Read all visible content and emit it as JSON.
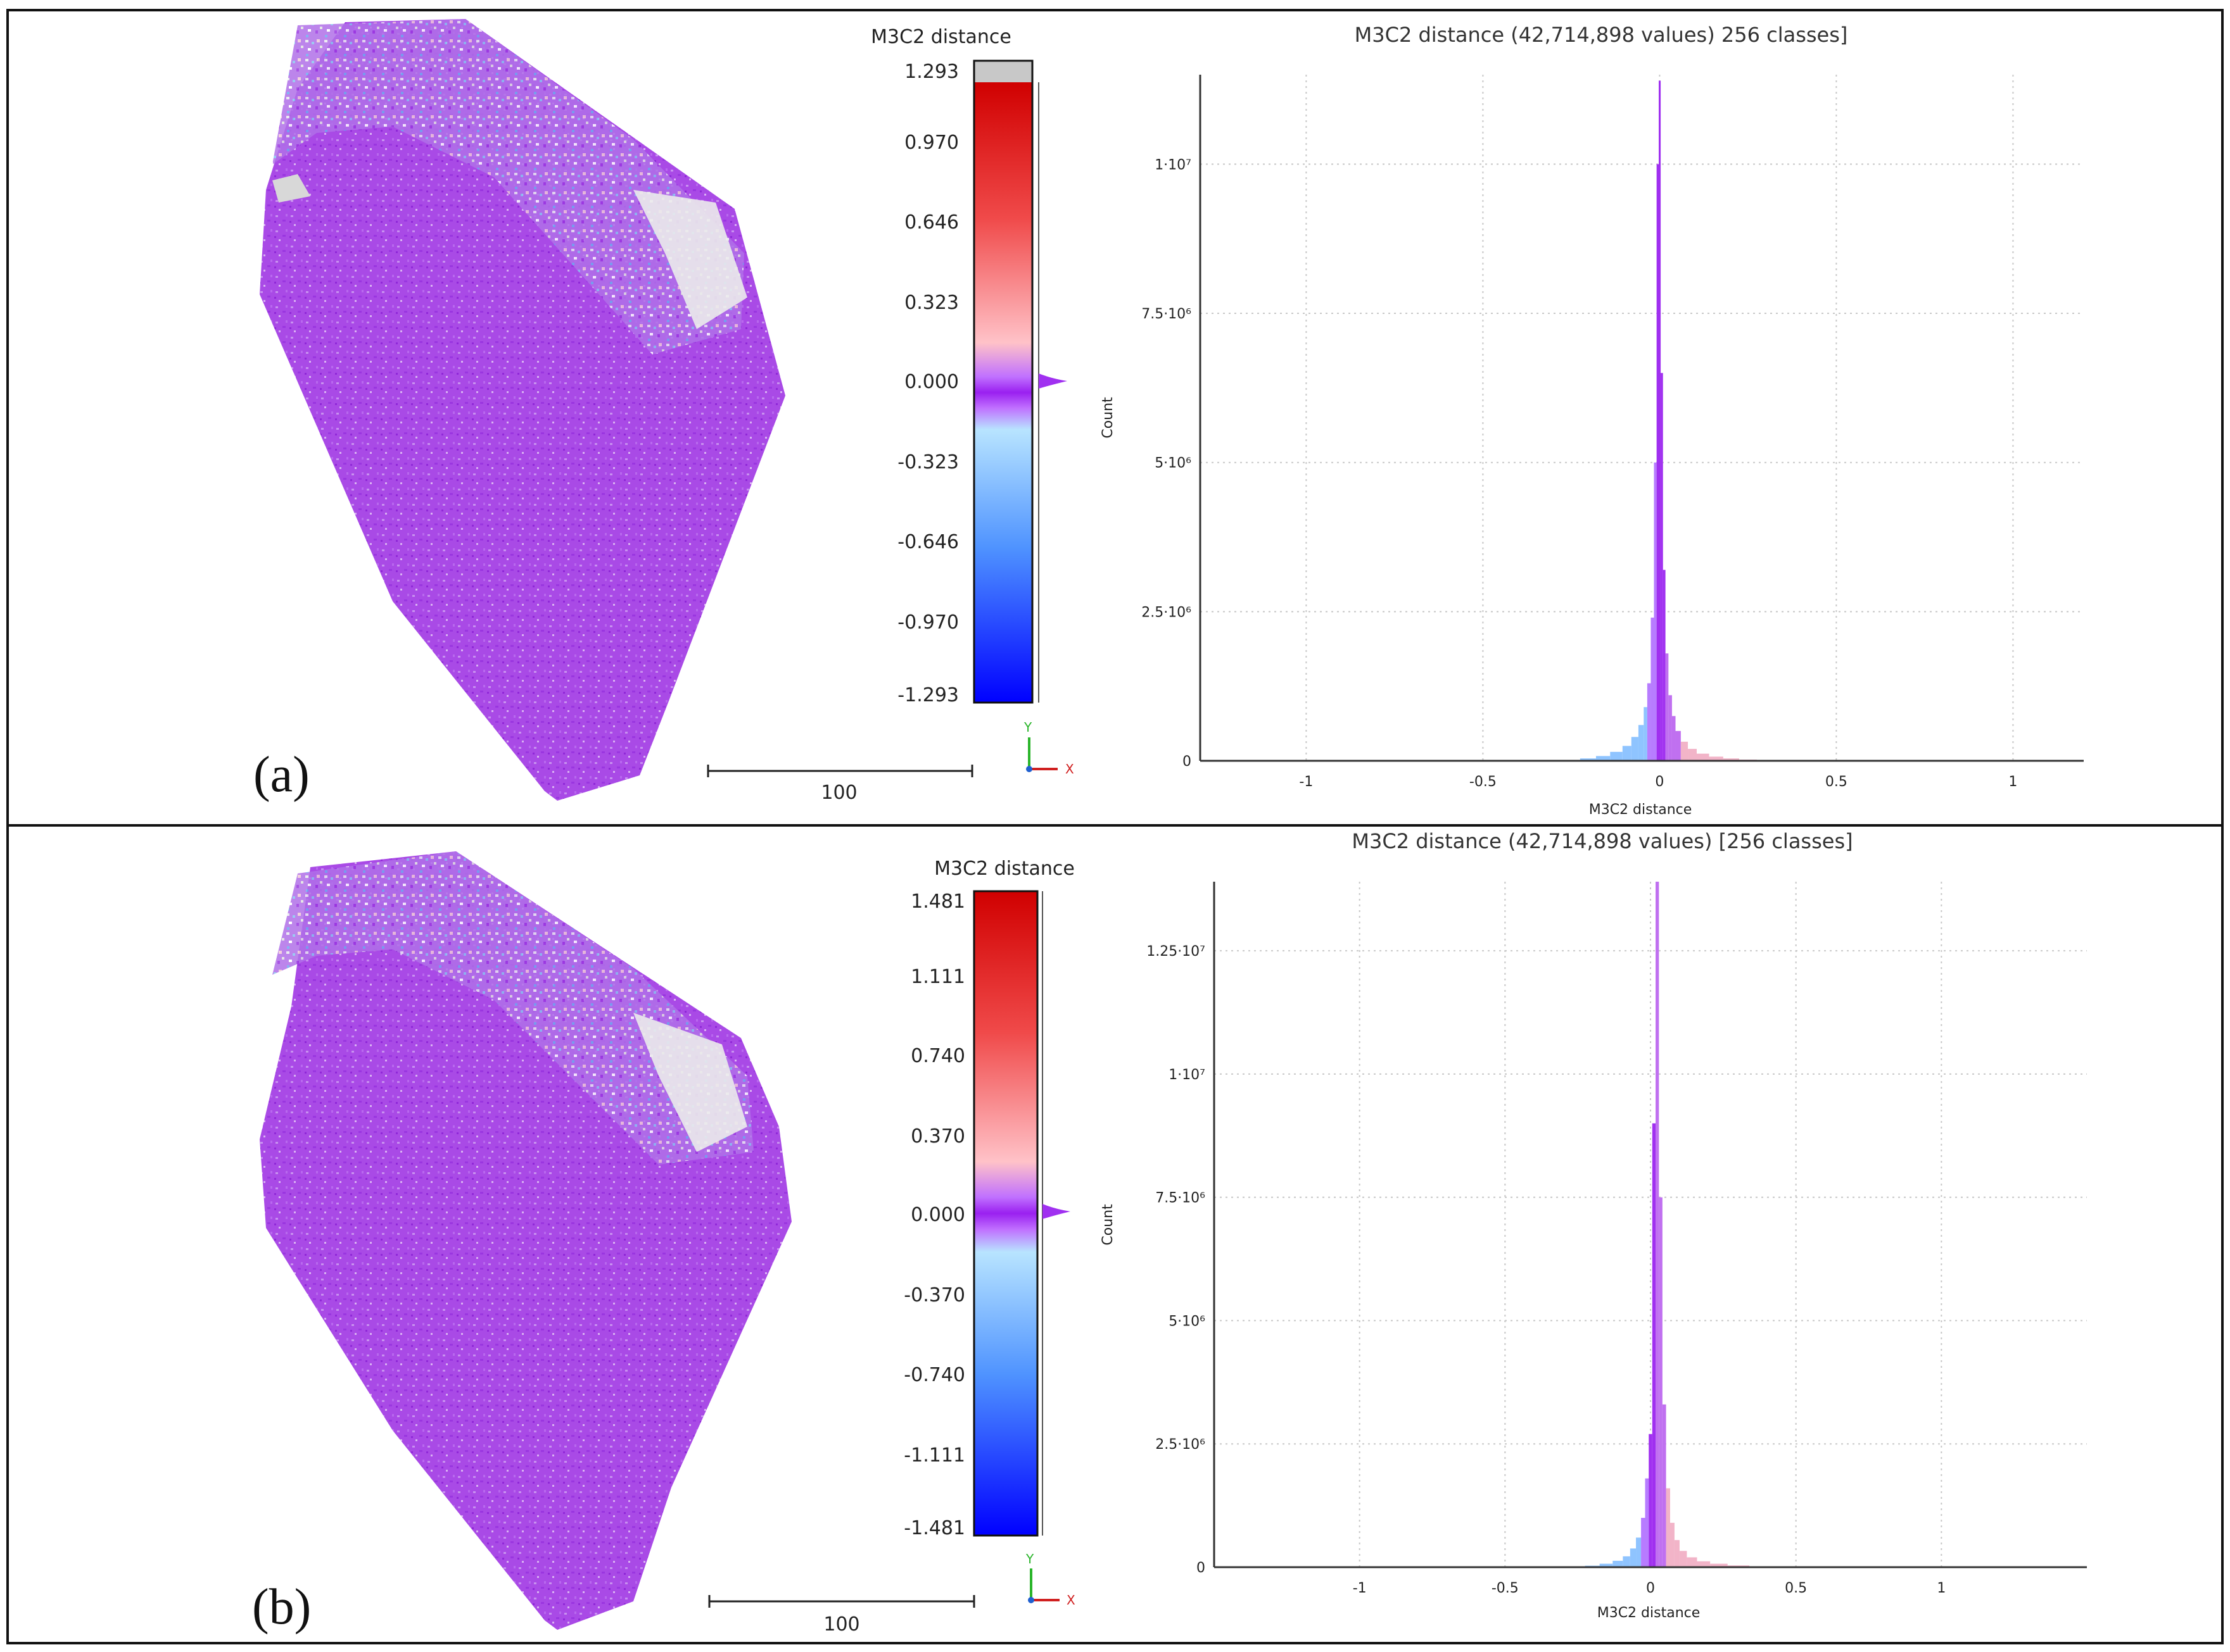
{
  "panels": [
    {
      "letter": "(a)",
      "colorbar": {
        "title": "M3C2 distance",
        "labels": [
          "1.293",
          "0.970",
          "0.646",
          "0.323",
          "0.000",
          "-0.323",
          "-0.646",
          "-0.970",
          "-1.293"
        ],
        "top_gray": true
      },
      "scale_label": "100",
      "axes": {
        "y": "Y",
        "x": "X"
      }
    },
    {
      "letter": "(b)",
      "colorbar": {
        "title": "M3C2 distance",
        "labels": [
          "1.481",
          "1.111",
          "0.740",
          "0.370",
          "0.000",
          "-0.370",
          "-0.740",
          "-1.111",
          "-1.481"
        ],
        "top_gray": false
      },
      "scale_label": "100",
      "axes": {
        "y": "Y",
        "x": "X"
      }
    }
  ],
  "chart_data": [
    {
      "type": "bar",
      "title": "M3C2 distance (42,714,898 values) 256 classes]",
      "xlabel": "M3C2 distance",
      "ylabel": "Count",
      "xlim": [
        -1.3,
        1.2
      ],
      "ylim": [
        0,
        11500000
      ],
      "xticks": [
        -1,
        -0.5,
        0,
        0.5,
        1
      ],
      "xtick_labels": [
        "-1",
        "-0.5",
        "0",
        "0.5",
        "1"
      ],
      "yticks": [
        0,
        2500000,
        5000000,
        7500000,
        10000000
      ],
      "ytick_labels": [
        "0",
        "2.5·10⁶",
        "5·10⁶",
        "7.5·10⁶",
        "1·10⁷"
      ],
      "x": [
        -0.3,
        -0.25,
        -0.2,
        -0.16,
        -0.12,
        -0.09,
        -0.07,
        -0.05,
        -0.04,
        -0.03,
        -0.02,
        -0.012,
        -0.005,
        0.0,
        0.006,
        0.013,
        0.02,
        0.03,
        0.04,
        0.05,
        0.07,
        0.09,
        0.12,
        0.16,
        0.2,
        0.25,
        0.3
      ],
      "values": [
        8000,
        15000,
        40000,
        80000,
        150000,
        250000,
        400000,
        600000,
        900000,
        1300000,
        2400000,
        5000000,
        10000000,
        11400000,
        6500000,
        3200000,
        1800000,
        1100000,
        750000,
        500000,
        320000,
        200000,
        120000,
        70000,
        40000,
        20000,
        10000
      ]
    },
    {
      "type": "bar",
      "title": "M3C2 distance (42,714,898 values) [256 classes]",
      "xlabel": "M3C2 distance",
      "ylabel": "Count",
      "xlim": [
        -1.5,
        1.5
      ],
      "ylim": [
        0,
        13900000
      ],
      "xticks": [
        -1,
        -0.5,
        0,
        0.5,
        1
      ],
      "xtick_labels": [
        "-1",
        "-0.5",
        "0",
        "0.5",
        "1"
      ],
      "yticks": [
        0,
        2500000,
        5000000,
        7500000,
        10000000,
        12500000
      ],
      "ytick_labels": [
        "0",
        "2.5·10⁶",
        "5·10⁶",
        "7.5·10⁶",
        "1·10⁷",
        "1.25·10⁷"
      ],
      "x": [
        -0.3,
        -0.25,
        -0.2,
        -0.15,
        -0.11,
        -0.08,
        -0.06,
        -0.04,
        -0.025,
        -0.012,
        0.0,
        0.012,
        0.023,
        0.035,
        0.047,
        0.06,
        0.075,
        0.09,
        0.11,
        0.14,
        0.18,
        0.23,
        0.3,
        0.38,
        0.45
      ],
      "values": [
        6000,
        12000,
        30000,
        70000,
        130000,
        220000,
        380000,
        600000,
        1000000,
        1800000,
        2700000,
        9000000,
        13900000,
        7500000,
        3300000,
        1600000,
        900000,
        550000,
        330000,
        200000,
        120000,
        70000,
        35000,
        15000,
        8000
      ]
    }
  ]
}
